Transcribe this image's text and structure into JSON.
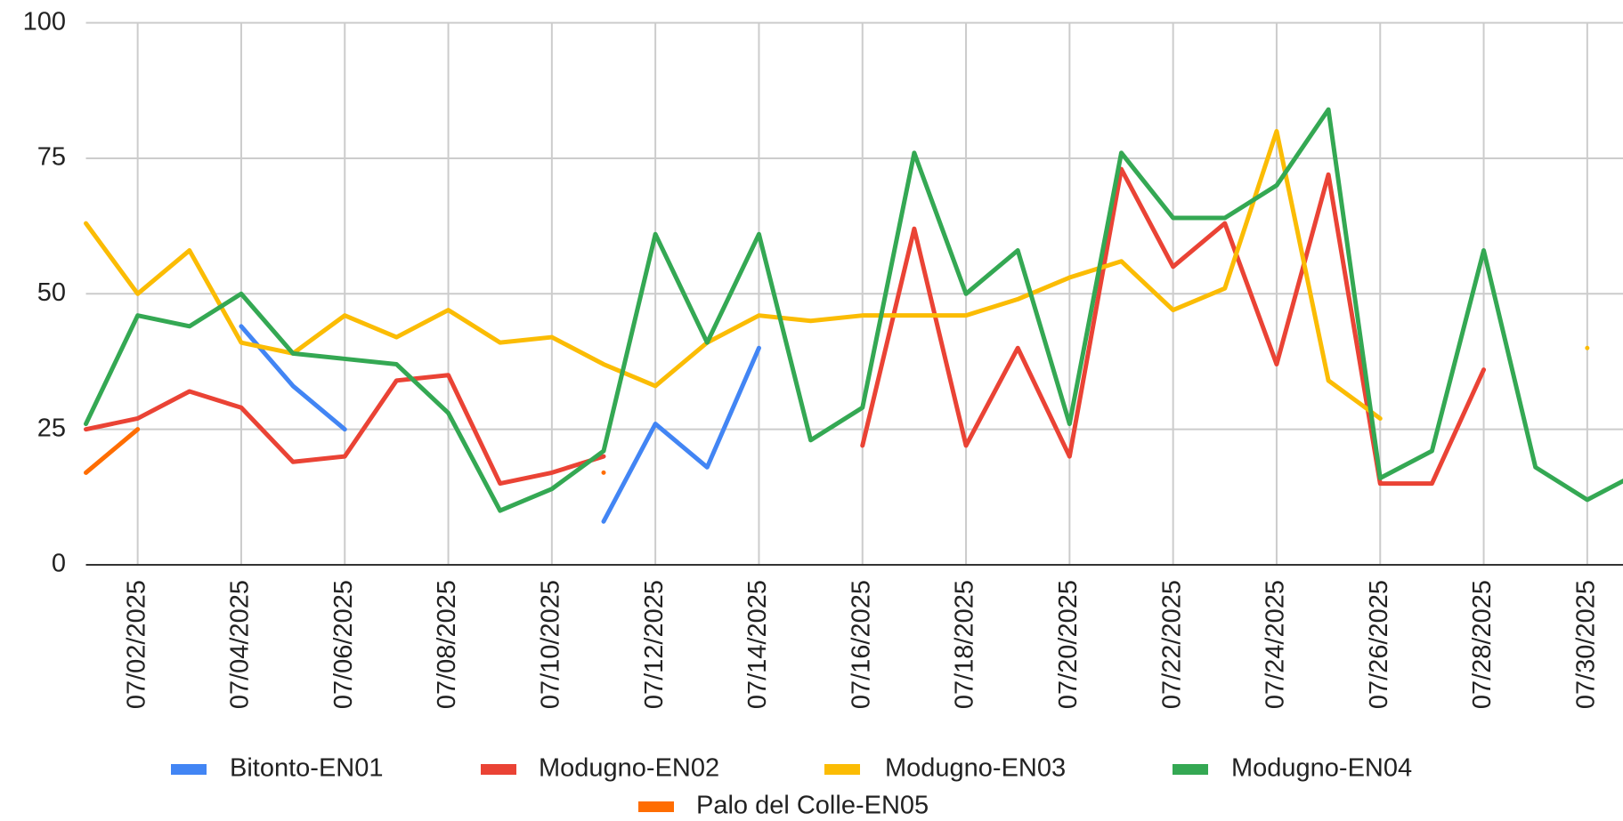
{
  "chart_data": {
    "type": "line",
    "categories": [
      null,
      "07/02/2025",
      null,
      "07/04/2025",
      null,
      "07/06/2025",
      null,
      "07/08/2025",
      null,
      "07/10/2025",
      null,
      "07/12/2025",
      null,
      "07/14/2025",
      null,
      "07/16/2025",
      null,
      "07/18/2025",
      null,
      "07/20/2025",
      null,
      "07/22/2025",
      null,
      "07/24/2025",
      null,
      "07/26/2025",
      null,
      "07/28/2025",
      null,
      "07/30/2025",
      null
    ],
    "series": [
      {
        "name": "Bitonto-EN01",
        "color": "#4285f4",
        "values": [
          null,
          null,
          null,
          44,
          33,
          25,
          null,
          null,
          null,
          null,
          8,
          26,
          18,
          40,
          null,
          null,
          null,
          null,
          null,
          null,
          null,
          null,
          null,
          null,
          null,
          null,
          null,
          null,
          null,
          null,
          null
        ]
      },
      {
        "name": "Modugno-EN02",
        "color": "#ea4335",
        "values": [
          25,
          27,
          32,
          29,
          19,
          20,
          34,
          35,
          15,
          17,
          20,
          null,
          null,
          null,
          null,
          22,
          62,
          22,
          40,
          20,
          73,
          55,
          63,
          37,
          72,
          15,
          15,
          36,
          null,
          null,
          null
        ]
      },
      {
        "name": "Modugno-EN03",
        "color": "#fbbc04",
        "values": [
          63,
          50,
          58,
          41,
          39,
          46,
          42,
          47,
          41,
          42,
          37,
          33,
          41,
          46,
          45,
          46,
          46,
          46,
          49,
          53,
          56,
          47,
          51,
          80,
          34,
          27,
          null,
          null,
          null,
          40,
          null
        ]
      },
      {
        "name": "Modugno-EN04",
        "color": "#34a853",
        "values": [
          26,
          46,
          44,
          50,
          39,
          38,
          37,
          28,
          10,
          14,
          21,
          61,
          41,
          61,
          23,
          29,
          76,
          50,
          58,
          26,
          76,
          64,
          64,
          70,
          84,
          16,
          21,
          58,
          18,
          12,
          17
        ]
      },
      {
        "name": "Palo del Colle-EN05",
        "color": "#ff6d01",
        "values": [
          17,
          25,
          null,
          null,
          null,
          null,
          null,
          null,
          null,
          null,
          17,
          null,
          null,
          null,
          null,
          null,
          null,
          null,
          null,
          null,
          null,
          null,
          null,
          null,
          null,
          null,
          null,
          null,
          null,
          null,
          null
        ]
      }
    ],
    "ylim": [
      0,
      100
    ],
    "yticks": [
      0,
      25,
      50,
      75,
      100
    ],
    "grid": true
  }
}
